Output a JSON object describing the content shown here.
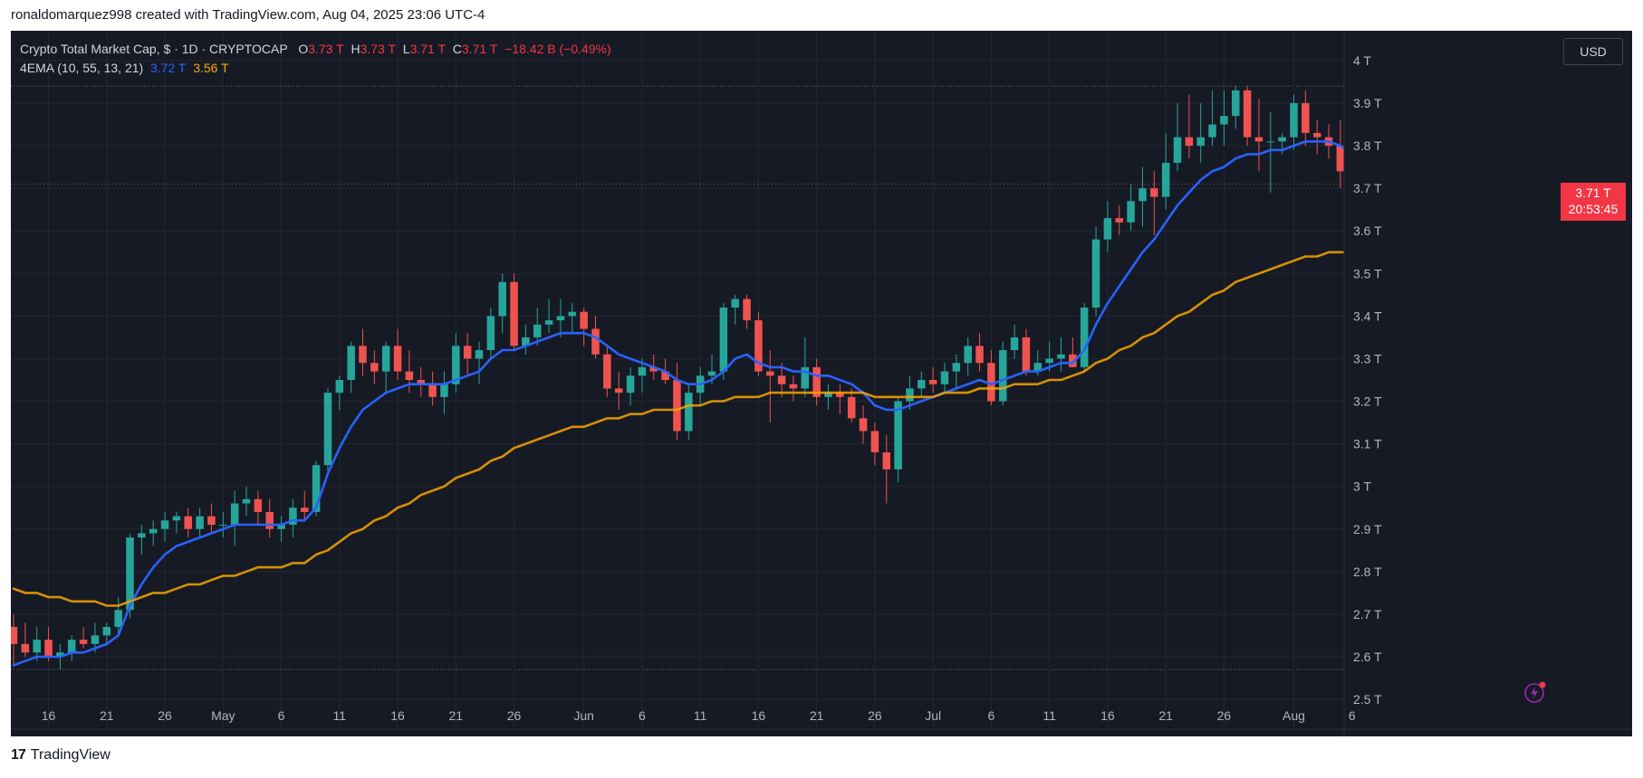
{
  "header": {
    "created_text": "ronaldomarquez998 created with TradingView.com, Aug 04, 2025 23:06 UTC-4"
  },
  "legend": {
    "symbol": "Crypto Total Market Cap, $ · 1D · CRYPTOCAP",
    "o_label": "O",
    "o_value": "3.73 T",
    "h_label": "H",
    "h_value": "3.73 T",
    "l_label": "L",
    "l_value": "3.71 T",
    "c_label": "C",
    "c_value": "3.71 T",
    "change": "−18.42 B (−0.49%)",
    "ema_label": "4EMA (10, 55, 13, 21)",
    "ema_fast_value": "3.72 T",
    "ema_slow_value": "3.56 T"
  },
  "currency_button": "USD",
  "price_tag": {
    "value": "3.71 T",
    "countdown": "20:53:45"
  },
  "footer": {
    "brand": "TradingView"
  },
  "colors": {
    "background": "#161a25",
    "up": "#26a69a",
    "down": "#ef5350",
    "ema_fast": "#2962ff",
    "ema_slow": "#f7a600",
    "grid": "#242733",
    "axis_text": "#b2b5be"
  },
  "chart_data": {
    "type": "candlestick",
    "title": "Crypto Total Market Cap, $ · 1D · CRYPTOCAP",
    "y_unit": "T (trillion USD)",
    "ylim": [
      2.43,
      4.07
    ],
    "y_ticks": [
      2.5,
      2.6,
      2.7,
      2.8,
      2.9,
      3.0,
      3.1,
      3.2,
      3.3,
      3.4,
      3.5,
      3.6,
      3.7,
      3.8,
      3.9,
      4.0
    ],
    "y_tick_labels": [
      "2.5 T",
      "2.6 T",
      "2.7 T",
      "2.8 T",
      "2.9 T",
      "3 T",
      "3.1 T",
      "3.2 T",
      "3.3 T",
      "3.4 T",
      "3.5 T",
      "3.6 T",
      "3.7 T",
      "3.8 T",
      "3.9 T",
      "4 T"
    ],
    "x_ticks": [
      {
        "i": 3,
        "label": "16"
      },
      {
        "i": 8,
        "label": "21"
      },
      {
        "i": 13,
        "label": "26"
      },
      {
        "i": 18,
        "label": "May"
      },
      {
        "i": 23,
        "label": "6"
      },
      {
        "i": 28,
        "label": "11"
      },
      {
        "i": 33,
        "label": "16"
      },
      {
        "i": 38,
        "label": "21"
      },
      {
        "i": 43,
        "label": "26"
      },
      {
        "i": 49,
        "label": "Jun"
      },
      {
        "i": 54,
        "label": "6"
      },
      {
        "i": 59,
        "label": "11"
      },
      {
        "i": 64,
        "label": "16"
      },
      {
        "i": 69,
        "label": "21"
      },
      {
        "i": 74,
        "label": "26"
      },
      {
        "i": 79,
        "label": "Jul"
      },
      {
        "i": 84,
        "label": "6"
      },
      {
        "i": 89,
        "label": "11"
      },
      {
        "i": 94,
        "label": "16"
      },
      {
        "i": 99,
        "label": "21"
      },
      {
        "i": 104,
        "label": "26"
      },
      {
        "i": 110,
        "label": "Aug"
      },
      {
        "i": 115,
        "label": "6"
      }
    ],
    "grid": true,
    "dotted_levels": [
      3.94,
      2.57
    ],
    "last_price": 3.71,
    "candles": [
      [
        2.67,
        2.7,
        2.58,
        2.63
      ],
      [
        2.63,
        2.68,
        2.6,
        2.61
      ],
      [
        2.61,
        2.67,
        2.59,
        2.64
      ],
      [
        2.64,
        2.67,
        2.59,
        2.6
      ],
      [
        2.6,
        2.63,
        2.57,
        2.61
      ],
      [
        2.61,
        2.65,
        2.59,
        2.64
      ],
      [
        2.64,
        2.67,
        2.62,
        2.63
      ],
      [
        2.63,
        2.68,
        2.61,
        2.65
      ],
      [
        2.65,
        2.68,
        2.63,
        2.67
      ],
      [
        2.67,
        2.74,
        2.65,
        2.71
      ],
      [
        2.71,
        2.89,
        2.69,
        2.88
      ],
      [
        2.88,
        2.91,
        2.84,
        2.89
      ],
      [
        2.89,
        2.92,
        2.86,
        2.9
      ],
      [
        2.9,
        2.94,
        2.87,
        2.92
      ],
      [
        2.92,
        2.94,
        2.89,
        2.93
      ],
      [
        2.93,
        2.95,
        2.88,
        2.9
      ],
      [
        2.9,
        2.95,
        2.88,
        2.93
      ],
      [
        2.93,
        2.96,
        2.89,
        2.91
      ],
      [
        2.91,
        2.94,
        2.88,
        2.91
      ],
      [
        2.91,
        2.99,
        2.86,
        2.96
      ],
      [
        2.96,
        3.0,
        2.93,
        2.97
      ],
      [
        2.97,
        2.99,
        2.91,
        2.94
      ],
      [
        2.94,
        2.97,
        2.88,
        2.9
      ],
      [
        2.9,
        2.93,
        2.87,
        2.91
      ],
      [
        2.91,
        2.97,
        2.88,
        2.95
      ],
      [
        2.95,
        2.99,
        2.92,
        2.94
      ],
      [
        2.94,
        3.06,
        2.93,
        3.05
      ],
      [
        3.05,
        3.23,
        3.03,
        3.22
      ],
      [
        3.22,
        3.26,
        3.18,
        3.25
      ],
      [
        3.25,
        3.34,
        3.22,
        3.33
      ],
      [
        3.33,
        3.37,
        3.26,
        3.29
      ],
      [
        3.29,
        3.32,
        3.24,
        3.27
      ],
      [
        3.27,
        3.34,
        3.22,
        3.33
      ],
      [
        3.33,
        3.37,
        3.25,
        3.27
      ],
      [
        3.27,
        3.32,
        3.22,
        3.25
      ],
      [
        3.25,
        3.28,
        3.21,
        3.24
      ],
      [
        3.24,
        3.27,
        3.19,
        3.21
      ],
      [
        3.21,
        3.27,
        3.17,
        3.24
      ],
      [
        3.24,
        3.36,
        3.22,
        3.33
      ],
      [
        3.33,
        3.36,
        3.26,
        3.3
      ],
      [
        3.3,
        3.34,
        3.24,
        3.32
      ],
      [
        3.32,
        3.42,
        3.3,
        3.4
      ],
      [
        3.4,
        3.5,
        3.36,
        3.48
      ],
      [
        3.48,
        3.5,
        3.32,
        3.33
      ],
      [
        3.33,
        3.38,
        3.31,
        3.35
      ],
      [
        3.35,
        3.42,
        3.33,
        3.38
      ],
      [
        3.38,
        3.44,
        3.36,
        3.39
      ],
      [
        3.39,
        3.44,
        3.35,
        3.4
      ],
      [
        3.4,
        3.43,
        3.36,
        3.41
      ],
      [
        3.41,
        3.42,
        3.33,
        3.37
      ],
      [
        3.37,
        3.4,
        3.3,
        3.31
      ],
      [
        3.31,
        3.33,
        3.21,
        3.23
      ],
      [
        3.23,
        3.27,
        3.18,
        3.22
      ],
      [
        3.22,
        3.28,
        3.19,
        3.26
      ],
      [
        3.26,
        3.3,
        3.22,
        3.28
      ],
      [
        3.28,
        3.31,
        3.25,
        3.27
      ],
      [
        3.27,
        3.3,
        3.24,
        3.25
      ],
      [
        3.25,
        3.29,
        3.11,
        3.13
      ],
      [
        3.13,
        3.24,
        3.11,
        3.22
      ],
      [
        3.22,
        3.28,
        3.19,
        3.26
      ],
      [
        3.26,
        3.31,
        3.24,
        3.27
      ],
      [
        3.27,
        3.43,
        3.25,
        3.42
      ],
      [
        3.42,
        3.45,
        3.38,
        3.44
      ],
      [
        3.44,
        3.45,
        3.37,
        3.39
      ],
      [
        3.39,
        3.41,
        3.26,
        3.27
      ],
      [
        3.27,
        3.32,
        3.15,
        3.26
      ],
      [
        3.26,
        3.29,
        3.21,
        3.24
      ],
      [
        3.24,
        3.26,
        3.2,
        3.23
      ],
      [
        3.23,
        3.35,
        3.21,
        3.28
      ],
      [
        3.28,
        3.3,
        3.19,
        3.21
      ],
      [
        3.21,
        3.24,
        3.18,
        3.22
      ],
      [
        3.22,
        3.24,
        3.17,
        3.21
      ],
      [
        3.21,
        3.23,
        3.15,
        3.16
      ],
      [
        3.16,
        3.19,
        3.1,
        3.13
      ],
      [
        3.13,
        3.15,
        3.05,
        3.08
      ],
      [
        3.08,
        3.12,
        2.96,
        3.04
      ],
      [
        3.04,
        3.21,
        3.01,
        3.2
      ],
      [
        3.2,
        3.26,
        3.18,
        3.23
      ],
      [
        3.23,
        3.27,
        3.21,
        3.25
      ],
      [
        3.25,
        3.28,
        3.22,
        3.24
      ],
      [
        3.24,
        3.29,
        3.22,
        3.27
      ],
      [
        3.27,
        3.31,
        3.23,
        3.29
      ],
      [
        3.29,
        3.35,
        3.26,
        3.33
      ],
      [
        3.33,
        3.36,
        3.27,
        3.29
      ],
      [
        3.29,
        3.32,
        3.19,
        3.2
      ],
      [
        3.2,
        3.34,
        3.19,
        3.32
      ],
      [
        3.32,
        3.38,
        3.3,
        3.35
      ],
      [
        3.35,
        3.37,
        3.26,
        3.27
      ],
      [
        3.27,
        3.32,
        3.26,
        3.29
      ],
      [
        3.29,
        3.34,
        3.27,
        3.3
      ],
      [
        3.3,
        3.35,
        3.27,
        3.31
      ],
      [
        3.31,
        3.35,
        3.28,
        3.28
      ],
      [
        3.28,
        3.43,
        3.27,
        3.42
      ],
      [
        3.42,
        3.61,
        3.4,
        3.58
      ],
      [
        3.58,
        3.67,
        3.55,
        3.63
      ],
      [
        3.63,
        3.66,
        3.59,
        3.62
      ],
      [
        3.62,
        3.71,
        3.6,
        3.67
      ],
      [
        3.67,
        3.75,
        3.61,
        3.7
      ],
      [
        3.7,
        3.74,
        3.59,
        3.68
      ],
      [
        3.68,
        3.83,
        3.65,
        3.76
      ],
      [
        3.76,
        3.9,
        3.74,
        3.82
      ],
      [
        3.82,
        3.92,
        3.77,
        3.8
      ],
      [
        3.8,
        3.9,
        3.76,
        3.82
      ],
      [
        3.82,
        3.93,
        3.8,
        3.85
      ],
      [
        3.85,
        3.93,
        3.8,
        3.87
      ],
      [
        3.87,
        3.94,
        3.84,
        3.93
      ],
      [
        3.93,
        3.94,
        3.8,
        3.82
      ],
      [
        3.82,
        3.91,
        3.74,
        3.81
      ],
      [
        3.81,
        3.88,
        3.69,
        3.81
      ],
      [
        3.81,
        3.83,
        3.78,
        3.82
      ],
      [
        3.82,
        3.92,
        3.79,
        3.9
      ],
      [
        3.9,
        3.93,
        3.8,
        3.83
      ],
      [
        3.83,
        3.86,
        3.78,
        3.82
      ],
      [
        3.82,
        3.85,
        3.77,
        3.8
      ],
      [
        3.8,
        3.86,
        3.7,
        3.74
      ],
      [
        3.74,
        3.78,
        3.62,
        3.64
      ],
      [
        3.64,
        3.66,
        3.56,
        3.59
      ],
      [
        3.59,
        3.67,
        3.56,
        3.66
      ],
      [
        3.66,
        3.74,
        3.64,
        3.73
      ],
      [
        3.73,
        3.73,
        3.71,
        3.71
      ]
    ],
    "series": [
      {
        "name": "EMA 10",
        "values": [
          2.58,
          2.59,
          2.6,
          2.6,
          2.6,
          2.61,
          2.61,
          2.62,
          2.63,
          2.65,
          2.72,
          2.77,
          2.81,
          2.84,
          2.86,
          2.87,
          2.88,
          2.89,
          2.9,
          2.91,
          2.91,
          2.91,
          2.91,
          2.91,
          2.92,
          2.92,
          2.95,
          3.03,
          3.09,
          3.14,
          3.18,
          3.2,
          3.22,
          3.23,
          3.24,
          3.24,
          3.24,
          3.24,
          3.25,
          3.26,
          3.27,
          3.3,
          3.32,
          3.32,
          3.33,
          3.34,
          3.35,
          3.36,
          3.36,
          3.36,
          3.35,
          3.33,
          3.31,
          3.3,
          3.29,
          3.28,
          3.27,
          3.25,
          3.24,
          3.24,
          3.25,
          3.27,
          3.3,
          3.31,
          3.29,
          3.28,
          3.28,
          3.27,
          3.27,
          3.26,
          3.26,
          3.25,
          3.24,
          3.22,
          3.19,
          3.18,
          3.18,
          3.19,
          3.2,
          3.21,
          3.22,
          3.23,
          3.24,
          3.25,
          3.24,
          3.25,
          3.26,
          3.27,
          3.27,
          3.28,
          3.29,
          3.29,
          3.32,
          3.38,
          3.43,
          3.47,
          3.51,
          3.55,
          3.58,
          3.62,
          3.66,
          3.69,
          3.72,
          3.74,
          3.75,
          3.77,
          3.78,
          3.78,
          3.79,
          3.79,
          3.8,
          3.81,
          3.81,
          3.81,
          3.8,
          3.78,
          3.75,
          3.73,
          3.72,
          3.72
        ]
      },
      {
        "name": "EMA 55",
        "values": [
          2.76,
          2.75,
          2.75,
          2.74,
          2.74,
          2.73,
          2.73,
          2.73,
          2.72,
          2.72,
          2.73,
          2.74,
          2.75,
          2.75,
          2.76,
          2.77,
          2.77,
          2.78,
          2.79,
          2.79,
          2.8,
          2.81,
          2.81,
          2.81,
          2.82,
          2.82,
          2.84,
          2.85,
          2.87,
          2.89,
          2.9,
          2.92,
          2.93,
          2.95,
          2.96,
          2.98,
          2.99,
          3.0,
          3.02,
          3.03,
          3.04,
          3.06,
          3.07,
          3.09,
          3.1,
          3.11,
          3.12,
          3.13,
          3.14,
          3.14,
          3.15,
          3.16,
          3.16,
          3.17,
          3.17,
          3.18,
          3.18,
          3.18,
          3.19,
          3.19,
          3.2,
          3.2,
          3.21,
          3.21,
          3.21,
          3.22,
          3.22,
          3.22,
          3.22,
          3.22,
          3.22,
          3.22,
          3.22,
          3.22,
          3.21,
          3.21,
          3.21,
          3.21,
          3.21,
          3.21,
          3.22,
          3.22,
          3.22,
          3.23,
          3.23,
          3.23,
          3.24,
          3.24,
          3.24,
          3.25,
          3.25,
          3.26,
          3.27,
          3.29,
          3.3,
          3.32,
          3.33,
          3.35,
          3.36,
          3.38,
          3.4,
          3.41,
          3.43,
          3.45,
          3.46,
          3.48,
          3.49,
          3.5,
          3.51,
          3.52,
          3.53,
          3.54,
          3.54,
          3.55,
          3.55,
          3.55,
          3.55,
          3.55,
          3.56,
          3.56
        ]
      }
    ]
  }
}
